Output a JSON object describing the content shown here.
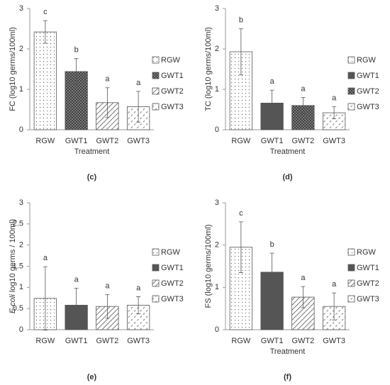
{
  "chart_data": [
    {
      "type": "bar",
      "panel": "(c)",
      "ylabel": "FC (log10 germs/100ml)",
      "xlabel": "Treatment",
      "categories": [
        "RGW",
        "GWT1",
        "GWT2",
        "GWT3"
      ],
      "values": [
        2.42,
        1.44,
        0.67,
        0.57
      ],
      "errors": [
        0.28,
        0.32,
        0.37,
        0.38
      ],
      "letters": [
        "c",
        "b",
        "a",
        "a"
      ],
      "patterns": [
        "dots",
        "crosshatch",
        "hatch",
        "dash"
      ],
      "ylim": [
        0,
        3
      ],
      "yticks": [
        0,
        1,
        2,
        3
      ]
    },
    {
      "type": "bar",
      "panel": "(d)",
      "ylabel": "TC (log10 germs/100ml)",
      "xlabel": "Treatment",
      "categories": [
        "RGW",
        "GWT1",
        "GWT2",
        "GWT3"
      ],
      "values": [
        1.93,
        0.66,
        0.6,
        0.42
      ],
      "errors": [
        0.57,
        0.32,
        0.2,
        0.15
      ],
      "letters": [
        "b",
        "a",
        "a",
        "a"
      ],
      "patterns": [
        "dots",
        "solid",
        "crosshatch",
        "dash"
      ],
      "ylim": [
        0,
        3
      ],
      "yticks": [
        0,
        1,
        2,
        3
      ]
    },
    {
      "type": "bar",
      "panel": "(e)",
      "ylabel_italic": "E.coli",
      "ylabel": " log10 germs / 100ml)",
      "categories": [
        "RGW",
        "GWT1",
        "GWT2",
        "GWT3"
      ],
      "values": [
        0.74,
        0.58,
        0.55,
        0.58
      ],
      "errors": [
        0.75,
        0.4,
        0.28,
        0.2
      ],
      "letters": [
        "a",
        "a",
        "a",
        "a"
      ],
      "patterns": [
        "dots",
        "solid",
        "hatch",
        "dash"
      ],
      "ylim": [
        0,
        3
      ],
      "yticks": [
        0,
        0.5,
        1,
        1.5,
        2,
        2.5,
        3
      ]
    },
    {
      "type": "bar",
      "panel": "(f)",
      "ylabel": "FS  (log10 germs/100ml)",
      "xlabel": "Treatment",
      "categories": [
        "RGW",
        "GWT1",
        "GWT2",
        "GWT3"
      ],
      "values": [
        1.95,
        1.36,
        0.77,
        0.55
      ],
      "errors": [
        0.6,
        0.45,
        0.25,
        0.32
      ],
      "letters": [
        "c",
        "b",
        "a",
        "a"
      ],
      "patterns": [
        "dots",
        "solid",
        "hatch",
        "dash"
      ],
      "ylim": [
        0,
        3
      ],
      "yticks": [
        0,
        1,
        2,
        3
      ]
    }
  ]
}
